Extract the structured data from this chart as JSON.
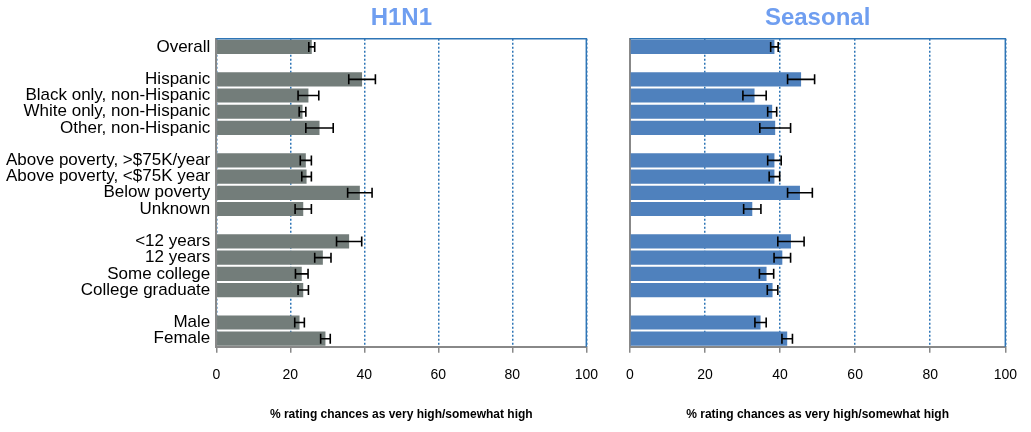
{
  "chart_data": [
    {
      "type": "bar",
      "orientation": "horizontal",
      "title": "H1N1",
      "xlabel": "% rating chances as very high/somewhat high",
      "categories": [
        "Overall",
        null,
        "Hispanic",
        "Black only, non-Hispanic",
        "White only, non-Hispanic",
        "Other, non-Hispanic",
        null,
        "Above poverty, >$75K/year",
        "Above poverty, <$75K year",
        "Below poverty",
        "Unknown",
        null,
        "<12 years",
        "12 years",
        "Some college",
        "College graduate",
        null,
        "Male",
        "Female"
      ],
      "values": [
        25.8,
        null,
        39.4,
        24.9,
        23.3,
        27.9,
        null,
        24.2,
        24.4,
        38.8,
        23.5,
        null,
        35.9,
        28.8,
        23.1,
        23.5,
        null,
        22.5,
        29.5
      ],
      "errors": [
        0.8,
        null,
        3.6,
        2.8,
        0.9,
        3.7,
        null,
        1.5,
        1.3,
        3.3,
        2.2,
        null,
        3.4,
        2.2,
        1.7,
        1.4,
        null,
        1.3,
        1.3
      ],
      "color": "#737d7a",
      "xlim": [
        0,
        100
      ],
      "xticks": [
        0,
        20,
        40,
        60,
        80,
        100
      ],
      "grid": "x"
    },
    {
      "type": "bar",
      "orientation": "horizontal",
      "title": "Seasonal",
      "xlabel": "% rating chances as very high/somewhat high",
      "categories": [
        null,
        null,
        null,
        null,
        null,
        null,
        null,
        null,
        null,
        null,
        null,
        null,
        null,
        null,
        null,
        null,
        null,
        null,
        null
      ],
      "values": [
        38.5,
        null,
        45.6,
        33.2,
        37.9,
        38.7,
        null,
        38.5,
        38.5,
        45.3,
        32.6,
        null,
        42.9,
        40.6,
        36.4,
        38.0,
        null,
        34.8,
        41.9
      ],
      "errors": [
        1.0,
        null,
        3.6,
        3.1,
        1.2,
        4.1,
        null,
        1.8,
        1.4,
        3.3,
        2.3,
        null,
        3.5,
        2.2,
        1.9,
        1.4,
        null,
        1.5,
        1.4
      ],
      "color": "#4f81bd",
      "xlim": [
        0,
        100
      ],
      "xticks": [
        0,
        20,
        40,
        60,
        80,
        100
      ],
      "grid": "x",
      "tick_labels": "x"
    }
  ]
}
